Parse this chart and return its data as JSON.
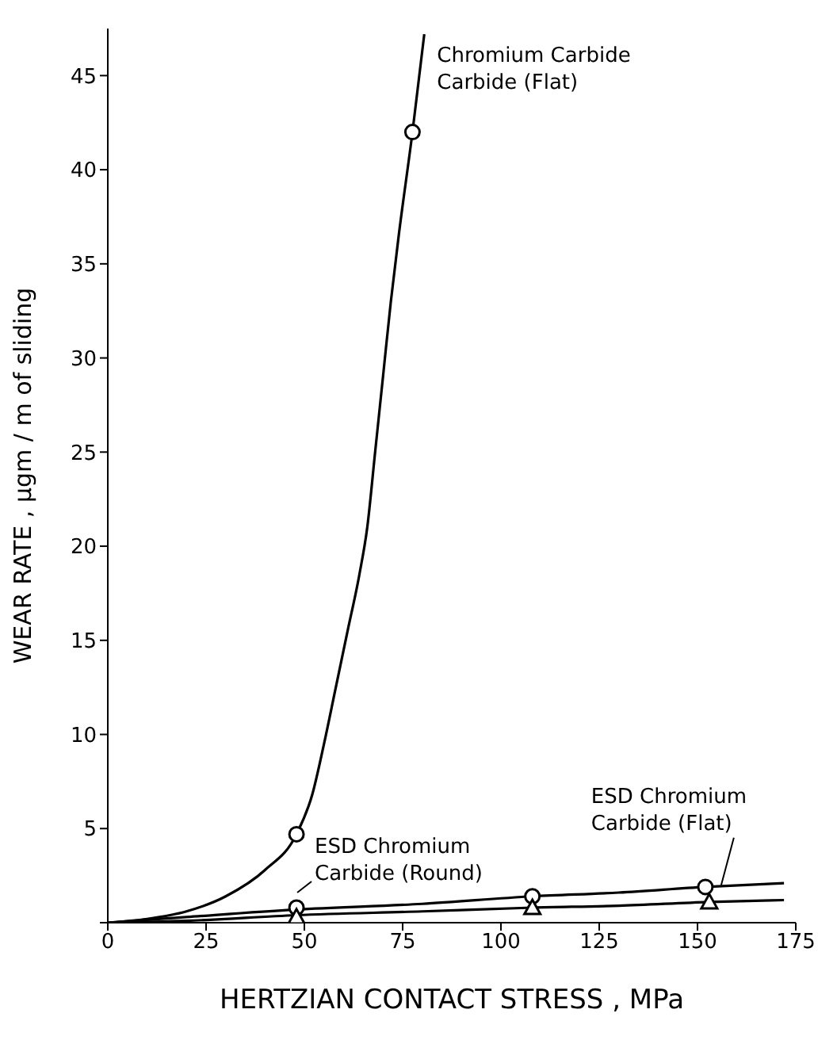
{
  "chart_data": {
    "type": "line",
    "xlabel": "HERTZIAN CONTACT STRESS   ,   MPa",
    "ylabel": "WEAR RATE , μgm / m of sliding",
    "xlim": [
      0,
      175
    ],
    "xticks": [
      0,
      25,
      50,
      75,
      100,
      125,
      150,
      175
    ],
    "ylim": [
      0,
      47.5
    ],
    "yticks": [
      {
        "value": 0,
        "label": null
      },
      5,
      10,
      15,
      20,
      25,
      30,
      35,
      40,
      45
    ],
    "grid": false,
    "legend": false,
    "line_style": "solid",
    "series": [
      {
        "type": "line",
        "color": "#000000",
        "marker": "none",
        "x": [
          0,
          10,
          20,
          30,
          40,
          48,
          52,
          55,
          58,
          61,
          64,
          66,
          68,
          70,
          72,
          74,
          77.5,
          80.5
        ],
        "values": [
          0,
          0.2,
          0.6,
          1.4,
          2.8,
          4.7,
          6.8,
          9.5,
          12.5,
          15.5,
          18.5,
          21,
          25,
          29,
          33,
          36.5,
          42,
          47.2
        ]
      },
      {
        "type": "line",
        "color": "#000000",
        "marker": "none",
        "x": [
          0,
          20,
          48,
          80,
          108,
          130,
          152,
          172
        ],
        "values": [
          0,
          0.3,
          0.7,
          1,
          1.4,
          1.6,
          1.9,
          2.1
        ]
      },
      {
        "type": "line",
        "color": "#000000",
        "marker": "none",
        "x": [
          0,
          20,
          48,
          80,
          108,
          130,
          153,
          172
        ],
        "values": [
          0,
          0.1,
          0.4,
          0.6,
          0.8,
          0.9,
          1.1,
          1.2
        ]
      },
      {
        "type": "scatter",
        "name": "Chromium Carbide Carbide (Flat)",
        "color": "#000000",
        "marker": "circle",
        "x": [
          48,
          77.5
        ],
        "values": [
          4.7,
          42
        ]
      },
      {
        "type": "scatter",
        "name": "ESD Chromium Carbide (Round)",
        "color": "#000000",
        "marker": "circle",
        "x": [
          48,
          108,
          152
        ],
        "values": [
          0.8,
          1.4,
          1.9
        ]
      },
      {
        "type": "scatter",
        "name": "ESD Chromium Carbide (Flat)",
        "color": "#000000",
        "marker": "triangle",
        "x": [
          48,
          108,
          153
        ],
        "values": [
          0.3,
          0.8,
          1.1
        ]
      }
    ]
  }
}
